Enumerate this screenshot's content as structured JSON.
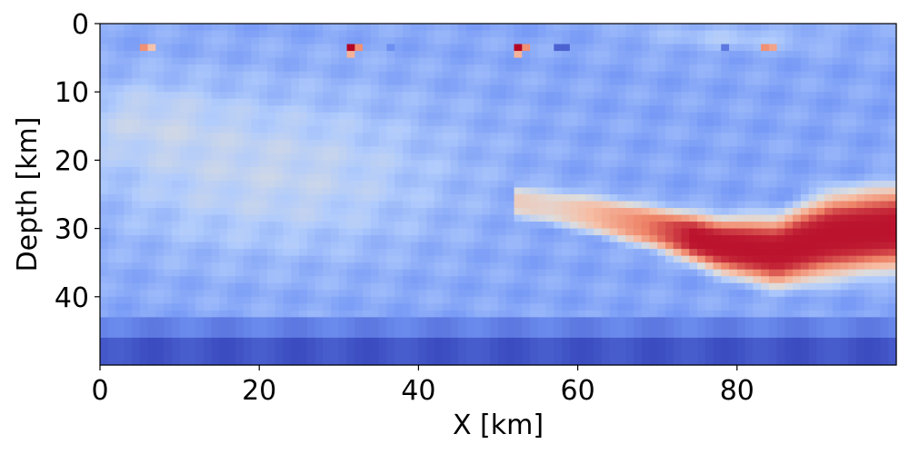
{
  "chart_data": {
    "type": "heatmap",
    "title": "",
    "xlabel": "X [km]",
    "ylabel": "Depth [km]",
    "xlim": [
      0,
      100
    ],
    "ylim": [
      50,
      0
    ],
    "xticks": [
      0,
      20,
      40,
      60,
      80
    ],
    "yticks": [
      0,
      10,
      20,
      30,
      40
    ],
    "grid": false,
    "colormap": "coolwarm",
    "colormap_stops": [
      "#3b4cc0",
      "#7396f5",
      "#b0cbfc",
      "#dddddd",
      "#f6bfa6",
      "#ee8468",
      "#b40426"
    ],
    "value_range": [
      0,
      1
    ],
    "grid_resolution_km": 1,
    "features": [
      {
        "kind": "background",
        "value": 0.22
      },
      {
        "kind": "field",
        "description_note": "smooth lighter wedge",
        "x_center": 22,
        "y_center": 22,
        "x_sigma": 22,
        "y_sigma": 12,
        "amplitude": 0.18
      },
      {
        "kind": "field",
        "x_center": 5,
        "y_center": 14,
        "x_sigma": 10,
        "y_sigma": 6,
        "amplitude": 0.12
      },
      {
        "kind": "field",
        "x_center": 80,
        "y_center": 2,
        "x_sigma": 12,
        "y_sigma": 2,
        "amplitude": 0.1
      },
      {
        "kind": "band",
        "y_from": 46,
        "y_to": 50,
        "value": 0.02
      },
      {
        "kind": "band",
        "y_from": 43,
        "y_to": 46,
        "value": 0.12
      },
      {
        "kind": "slab",
        "points": [
          [
            52,
            26.0
          ],
          [
            60,
            27.5
          ],
          [
            70,
            30.0
          ],
          [
            78,
            32.5
          ],
          [
            85,
            33.5
          ],
          [
            92,
            31.0
          ],
          [
            100,
            30.0
          ]
        ],
        "thickness": [
          4,
          5,
          6,
          8,
          10,
          12,
          12
        ],
        "peak_value": 0.98
      },
      {
        "kind": "spot",
        "x": 5,
        "y": 3,
        "value": 0.8
      },
      {
        "kind": "spot",
        "x": 6,
        "y": 3,
        "value": 0.65
      },
      {
        "kind": "spot",
        "x": 31,
        "y": 3,
        "value": 1.0
      },
      {
        "kind": "spot",
        "x": 32,
        "y": 3,
        "value": 0.8
      },
      {
        "kind": "spot",
        "x": 31,
        "y": 4,
        "value": 0.7
      },
      {
        "kind": "spot",
        "x": 52,
        "y": 3,
        "value": 1.0
      },
      {
        "kind": "spot",
        "x": 53,
        "y": 3,
        "value": 0.8
      },
      {
        "kind": "spot",
        "x": 52,
        "y": 4,
        "value": 0.7
      },
      {
        "kind": "spot",
        "x": 57,
        "y": 3,
        "value": 0.05
      },
      {
        "kind": "spot",
        "x": 58,
        "y": 3,
        "value": 0.05
      },
      {
        "kind": "spot",
        "x": 36,
        "y": 3,
        "value": 0.15
      },
      {
        "kind": "spot",
        "x": 78,
        "y": 3,
        "value": 0.1
      },
      {
        "kind": "spot",
        "x": 83,
        "y": 3,
        "value": 0.8
      },
      {
        "kind": "spot",
        "x": 84,
        "y": 3,
        "value": 0.75
      }
    ]
  }
}
